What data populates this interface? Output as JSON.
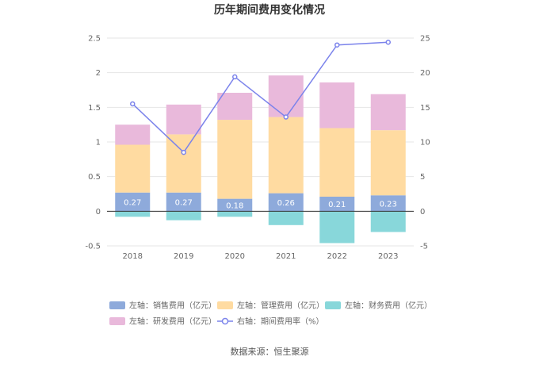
{
  "chart_data": {
    "type": "bar",
    "title": "历年期间费用变化情况",
    "categories": [
      "2018",
      "2019",
      "2020",
      "2021",
      "2022",
      "2023"
    ],
    "series": [
      {
        "name": "左轴：销售费用（亿元）",
        "axis": "left",
        "color": "#8eaadb",
        "values": [
          0.27,
          0.27,
          0.18,
          0.26,
          0.21,
          0.23
        ],
        "labels": [
          "0.27",
          "0.27",
          "0.18",
          "0.26",
          "0.21",
          "0.23"
        ]
      },
      {
        "name": "左轴：管理费用（亿元）",
        "axis": "left",
        "color": "#ffdba1",
        "values": [
          0.69,
          0.84,
          1.14,
          1.1,
          0.99,
          0.94
        ]
      },
      {
        "name": "左轴：财务费用（亿元）",
        "axis": "left",
        "color": "#88d7da",
        "values": [
          -0.08,
          -0.13,
          -0.08,
          -0.2,
          -0.46,
          -0.3
        ]
      },
      {
        "name": "左轴：研发费用（亿元）",
        "axis": "left",
        "color": "#e9b9db",
        "values": [
          0.29,
          0.43,
          0.39,
          0.6,
          0.66,
          0.52
        ]
      },
      {
        "name": "右轴：期间费用率（%）",
        "axis": "right",
        "type": "line",
        "color": "#7b83eb",
        "values": [
          15.5,
          8.5,
          19.4,
          13.6,
          24.0,
          24.4
        ]
      }
    ],
    "left_axis": {
      "min": -0.5,
      "max": 2.5,
      "ticks": [
        "-0.5",
        "0",
        "0.5",
        "1",
        "1.5",
        "2",
        "2.5"
      ]
    },
    "right_axis": {
      "min": -5,
      "max": 25,
      "ticks": [
        "-5",
        "0",
        "5",
        "10",
        "15",
        "20",
        "25"
      ]
    },
    "legend_position": "bottom",
    "source": "数据来源：恒生聚源"
  }
}
